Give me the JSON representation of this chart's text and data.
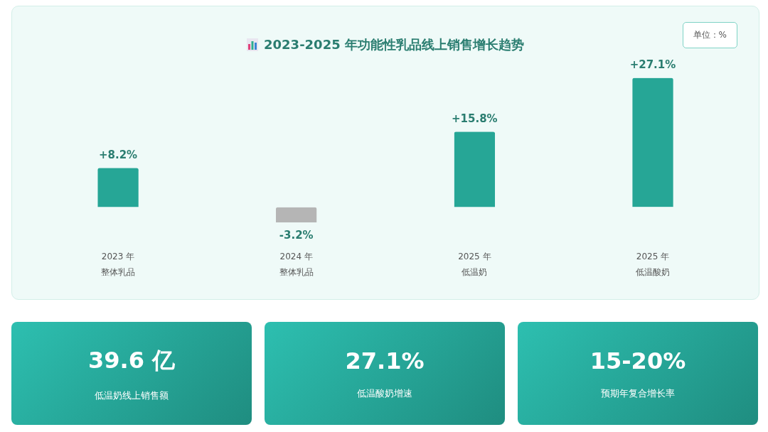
{
  "chart_data": [
    {
      "type": "bar",
      "title": "2023-2025 年功能性乳品线上销售增长趋势",
      "categories": [
        "2023 年整体乳品",
        "2024 年整体乳品",
        "2025 年低温奶",
        "2025 年低温酸奶"
      ],
      "values": [
        8.2,
        -3.2,
        15.8,
        27.1
      ],
      "colors": [
        "#26a696",
        "#b5b5b5",
        "#26a696",
        "#26a696"
      ],
      "value_labels": [
        "+8.2%",
        "-3.2%",
        "+15.8%",
        "+27.1%"
      ],
      "annotations": [
        "单位：%"
      ]
    },
    {
      "type": "other",
      "annotations": [
        "39.6 亿",
        "低温奶线上销售额",
        "27.1%",
        "低温酸奶增速",
        "15-20%",
        "预期年复合增长率"
      ]
    }
  ]
}
